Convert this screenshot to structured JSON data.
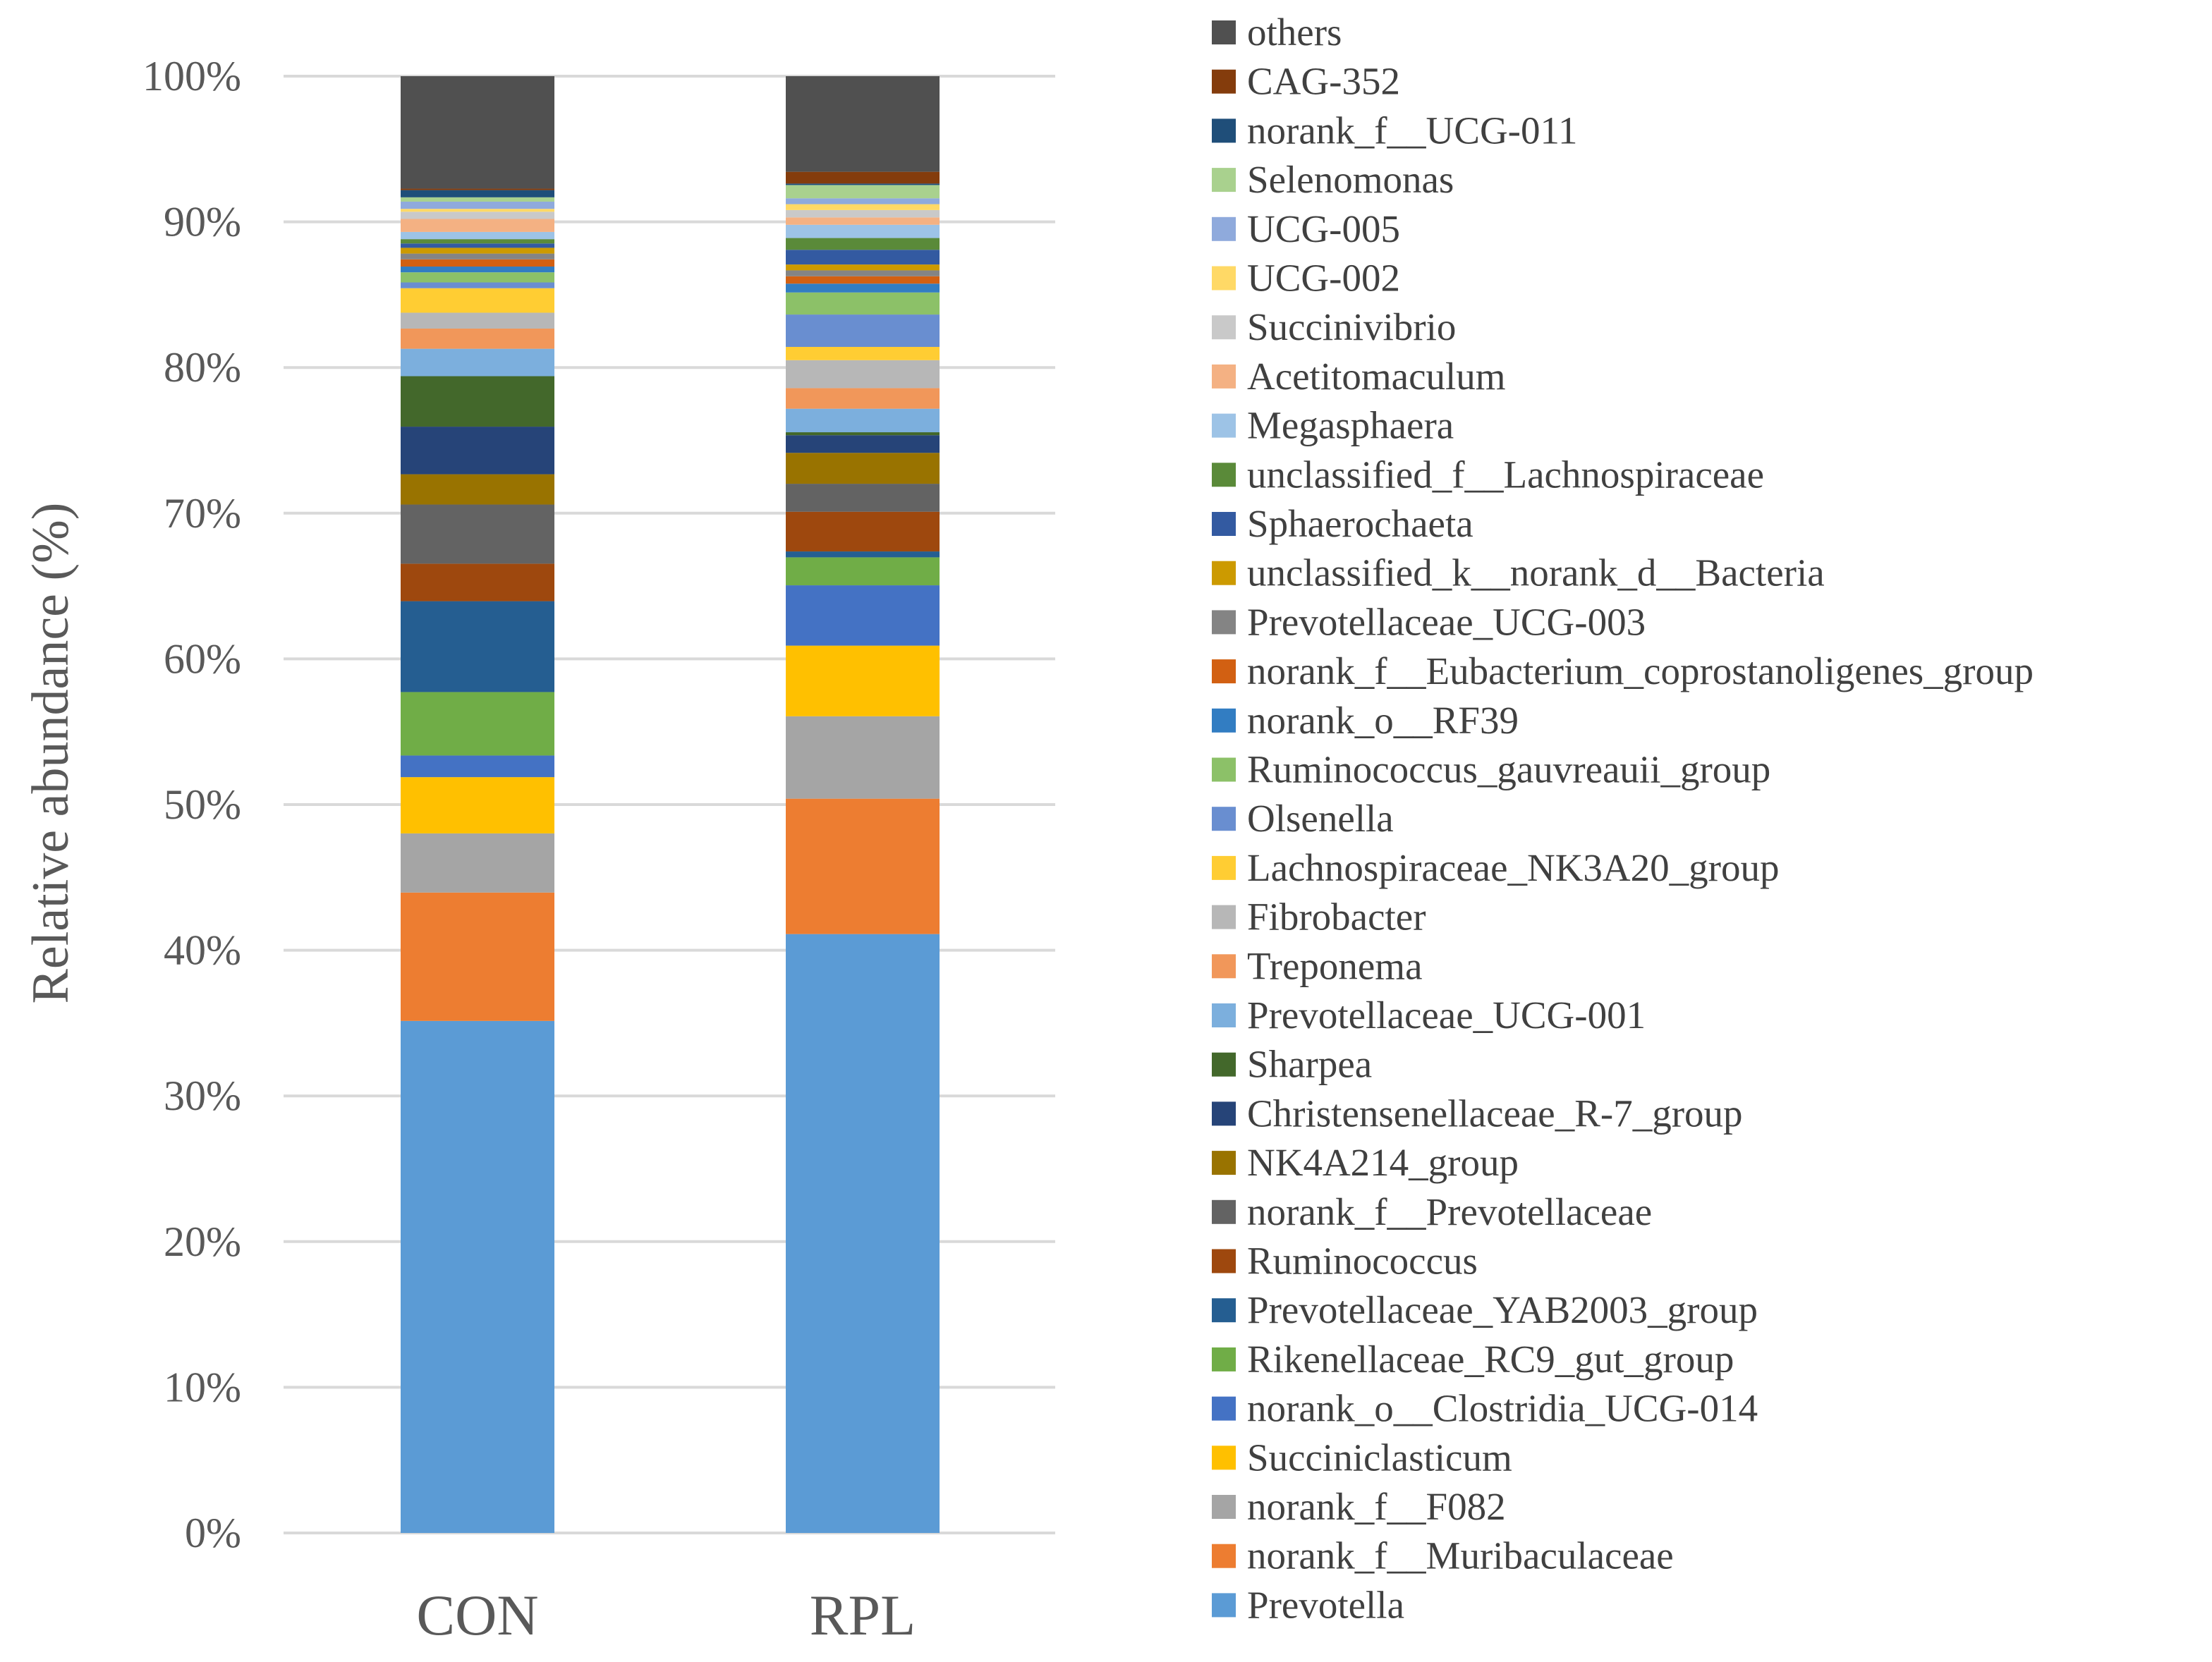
{
  "chart_data": {
    "type": "stacked-bar-100",
    "ylabel": "Relative abundance  (%)",
    "xlabel": "",
    "ylim": [
      0,
      100
    ],
    "y_ticks": [
      "0%",
      "10%",
      "20%",
      "30%",
      "40%",
      "50%",
      "60%",
      "70%",
      "80%",
      "90%",
      "100%"
    ],
    "categories": [
      "CON",
      "RPL"
    ],
    "legend_position": "right",
    "series": [
      {
        "name": "Prevotella",
        "color": "#5b9bd5",
        "values": [
          35.5,
          40.7
        ]
      },
      {
        "name": "norank_f__Muribaculaceae",
        "color": "#ed7d31",
        "values": [
          8.9,
          9.2
        ]
      },
      {
        "name": "norank_f__F082",
        "color": "#a5a5a5",
        "values": [
          4.1,
          5.6
        ]
      },
      {
        "name": "Succiniclasticum",
        "color": "#ffc000",
        "values": [
          3.9,
          4.8
        ]
      },
      {
        "name": "norank_o__Clostridia_UCG-014",
        "color": "#4472c4",
        "values": [
          1.5,
          4.1
        ]
      },
      {
        "name": "Rikenellaceae_RC9_gut_group",
        "color": "#70ad47",
        "values": [
          4.4,
          1.9
        ]
      },
      {
        "name": "Prevotellaceae_YAB2003_group",
        "color": "#255e91",
        "values": [
          6.3,
          0.4
        ]
      },
      {
        "name": "Ruminococcus",
        "color": "#9e480e",
        "values": [
          2.6,
          2.7
        ]
      },
      {
        "name": "norank_f__Prevotellaceae",
        "color": "#636363",
        "values": [
          4.1,
          1.9
        ]
      },
      {
        "name": "NK4A214_group",
        "color": "#997300",
        "values": [
          2.1,
          2.1
        ]
      },
      {
        "name": "Christensenellaceae_R-7_group",
        "color": "#264478",
        "values": [
          3.3,
          1.2
        ]
      },
      {
        "name": "Sharpea",
        "color": "#43682b",
        "values": [
          3.5,
          0.2
        ]
      },
      {
        "name": "Prevotellaceae_UCG-001",
        "color": "#7cafdd",
        "values": [
          1.9,
          1.6
        ]
      },
      {
        "name": "Treponema",
        "color": "#f1975a",
        "values": [
          1.4,
          1.4
        ]
      },
      {
        "name": "Fibrobacter",
        "color": "#b7b7b7",
        "values": [
          1.1,
          1.9
        ]
      },
      {
        "name": "Lachnospiraceae_NK3A20_group",
        "color": "#ffcd33",
        "values": [
          1.7,
          0.9
        ]
      },
      {
        "name": "Olsenella",
        "color": "#698ed0",
        "values": [
          0.4,
          2.2
        ]
      },
      {
        "name": "Ruminococcus_gauvreauii_group",
        "color": "#8cc168",
        "values": [
          0.7,
          1.5
        ]
      },
      {
        "name": "norank_o__RF39",
        "color": "#327dc2",
        "values": [
          0.4,
          0.6
        ]
      },
      {
        "name": "norank_f__Eubacterium_coprostanoligenes_group",
        "color": "#d26012",
        "values": [
          0.5,
          0.5
        ]
      },
      {
        "name": "Prevotellaceae_UCG-003",
        "color": "#848484",
        "values": [
          0.4,
          0.4
        ]
      },
      {
        "name": "unclassified_k__norank_d__Bacteria",
        "color": "#cc9a00",
        "values": [
          0.4,
          0.4
        ]
      },
      {
        "name": "Sphaerochaeta",
        "color": "#335aa1",
        "values": [
          0.3,
          1.0
        ]
      },
      {
        "name": "unclassified_f__Lachnospiraceae",
        "color": "#5a8a39",
        "values": [
          0.3,
          0.8
        ]
      },
      {
        "name": "Megasphaera",
        "color": "#9dc3e6",
        "values": [
          0.5,
          0.9
        ]
      },
      {
        "name": "Acetitomaculum",
        "color": "#f4b183",
        "values": [
          0.9,
          0.5
        ]
      },
      {
        "name": "Succinivibrio",
        "color": "#c9c9c9",
        "values": [
          0.5,
          0.5
        ]
      },
      {
        "name": "UCG-002",
        "color": "#ffd966",
        "values": [
          0.2,
          0.4
        ]
      },
      {
        "name": "UCG-005",
        "color": "#8faadc",
        "values": [
          0.5,
          0.4
        ]
      },
      {
        "name": "Selenomonas",
        "color": "#a9d18e",
        "values": [
          0.3,
          0.9
        ]
      },
      {
        "name": "norank_f__UCG-011",
        "color": "#1f4e79",
        "values": [
          0.5,
          0.1
        ]
      },
      {
        "name": "CAG-352",
        "color": "#843c0c",
        "values": [
          0.1,
          0.8
        ]
      },
      {
        "name": "others",
        "color": "#505050",
        "values": [
          7.8,
          6.5
        ]
      }
    ]
  }
}
